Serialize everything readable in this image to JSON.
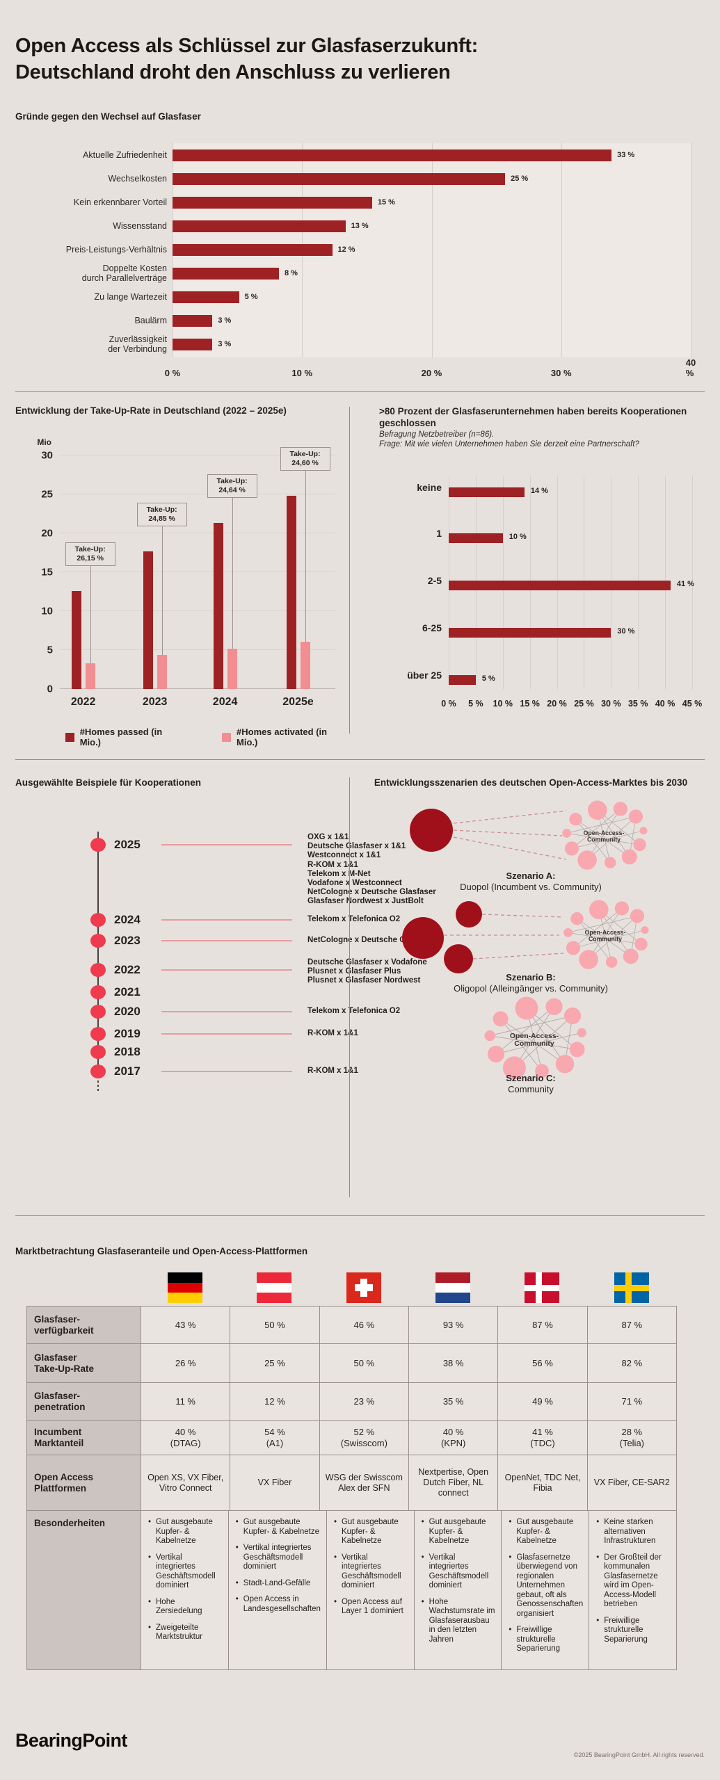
{
  "page": {
    "title": "Open Access als Schlüssel zur Glasfaserzukunft:\nDeutschland droht den Anschluss zu verlieren",
    "brand": "BearingPoint",
    "copyright": "©2025 BearingPoint GmbH. All rights reserved."
  },
  "colors": {
    "background": "#e7e1de",
    "dark_red": "#9e2124",
    "light_pink": "#f28d91",
    "bright_red": "#ef3b4d",
    "scenario_dark_red": "#a0101a",
    "scenario_pink": "#f8a8ae",
    "net_line": "#b5adaa",
    "dashed_line": "#c68f8e",
    "grid_line": "#d5cfcb"
  },
  "chart_data": [
    {
      "id": "reasons",
      "type": "bar",
      "orientation": "horizontal",
      "title": "Gründe gegen den Wechsel auf Glasfaser",
      "categories": [
        "Aktuelle Zufriedenheit",
        "Wechselkosten",
        "Kein erkennbarer Vorteil",
        "Wissensstand",
        "Preis-Leistungs-Verhältnis",
        "Doppelte Kosten\ndurch Parallelverträge",
        "Zu lange Wartezeit",
        "Baulärm",
        "Zuverlässigkeit\nder Verbindung"
      ],
      "values": [
        33,
        25,
        15,
        13,
        12,
        8,
        5,
        3,
        3
      ],
      "value_labels": [
        "33 %",
        "25 %",
        "15 %",
        "13 %",
        "12 %",
        "8 %",
        "5 %",
        "3 %",
        "3 %"
      ],
      "xlim": [
        0,
        40
      ],
      "x_ticks": [
        "0 %",
        "10 %",
        "20 %",
        "30 %",
        "40 %"
      ],
      "grid": true
    },
    {
      "id": "takeup",
      "type": "bar",
      "orientation": "vertical",
      "title": "Entwicklung der Take-Up-Rate in Deutschland (2022 – 2025e)",
      "unit_label": "Mio",
      "categories": [
        "2022",
        "2023",
        "2024",
        "2025e"
      ],
      "series": [
        {
          "name": "#Homes passed (in Mio.)",
          "values": [
            12.6,
            17.7,
            21.3,
            24.8
          ]
        },
        {
          "name": "#Homes activated (in Mio.)",
          "values": [
            3.3,
            4.4,
            5.2,
            6.1
          ]
        }
      ],
      "annotations": [
        {
          "line1": "Take-Up:",
          "line2": "26,15 %"
        },
        {
          "line1": "Take-Up:",
          "line2": "24,85 %"
        },
        {
          "line1": "Take-Up:",
          "line2": "24,64 %"
        },
        {
          "line1": "Take-Up:",
          "line2": "24,60 %"
        }
      ],
      "ylim": [
        0,
        30
      ],
      "y_ticks": [
        0,
        5,
        10,
        15,
        20,
        25,
        30
      ],
      "grid": true,
      "legend_position": "bottom"
    },
    {
      "id": "partnerships",
      "type": "bar",
      "orientation": "horizontal",
      "title": ">80 Prozent der Glasfaserunternehmen haben bereits Kooperationen geschlossen",
      "subtitle1": "Befragung Netzbetreiber (n=86).",
      "subtitle2": "Frage: Mit wie vielen Unternehmen haben Sie derzeit eine Partnerschaft?",
      "categories": [
        "keine",
        "1",
        "2-5",
        "6-25",
        "über 25"
      ],
      "values": [
        14,
        10,
        41,
        30,
        5
      ],
      "value_labels": [
        "14 %",
        "10 %",
        "41 %",
        "30 %",
        "5 %"
      ],
      "xlim": [
        0,
        45
      ],
      "x_ticks": [
        "0 %",
        "5 %",
        "10 %",
        "15 %",
        "20 %",
        "25 %",
        "30 %",
        "35 %",
        "40 %",
        "45 %"
      ],
      "grid": true
    }
  ],
  "timeline": {
    "title": "Ausgewählte Beispiele für Kooperationen",
    "entries": [
      {
        "year": "2025",
        "items": [
          "OXG x 1&1",
          "Deutsche Glasfaser x 1&1",
          "Westconnect x 1&1",
          "R-KOM x 1&1",
          "Telekom x M-Net",
          "Vodafone x Westconnect",
          "NetCologne x Deutsche Glasfaser",
          "Glasfaser Nordwest x JustBolt"
        ]
      },
      {
        "year": "2024",
        "items": [
          "Telekom x Telefonica O2"
        ]
      },
      {
        "year": "2023",
        "items": [
          "NetCologne x Deutsche Glasfaser"
        ]
      },
      {
        "year": "2022",
        "items": [
          "Deutsche Glasfaser x Vodafone",
          "Plusnet x Glasfaser Plus",
          "Plusnet x Glasfaser Nordwest"
        ]
      },
      {
        "year": "2021",
        "items": []
      },
      {
        "year": "2020",
        "items": [
          "Telekom x Telefonica O2"
        ]
      },
      {
        "year": "2019",
        "items": [
          "R-KOM x 1&1"
        ]
      },
      {
        "year": "2018",
        "items": []
      },
      {
        "year": "2017",
        "items": [
          "R-KOM x 1&1"
        ]
      }
    ]
  },
  "scenarios": {
    "title": "Entwicklungsszenarien des deutschen Open-Access-Marktes bis 2030",
    "community_label_line1": "Open-Access-",
    "community_label_line2": "Community",
    "items": [
      {
        "name": "Szenario A:",
        "desc": "Duopol (Incumbent vs. Community)",
        "incumbents": 1
      },
      {
        "name": "Szenario B:",
        "desc": "Oligopol (Alleingänger vs. Community)",
        "incumbents": 3
      },
      {
        "name": "Szenario C:",
        "desc": "Community",
        "incumbents": 0
      }
    ]
  },
  "market_table": {
    "title": "Marktbetrachtung Glasfaseranteile und Open-Access-Plattformen",
    "countries": [
      "germany",
      "austria",
      "switzerland",
      "netherlands",
      "denmark",
      "sweden"
    ],
    "rows": [
      {
        "label": "Glasfaser-\nverfügbarkeit",
        "cells": [
          "43 %",
          "50 %",
          "46 %",
          "93 %",
          "87 %",
          "87 %"
        ]
      },
      {
        "label": "Glasfaser\nTake-Up-Rate",
        "cells": [
          "26 %",
          "25 %",
          "50 %",
          "38 %",
          "56 %",
          "82 %"
        ]
      },
      {
        "label": "Glasfaser-\npenetration",
        "cells": [
          "11 %",
          "12 %",
          "23 %",
          "35 %",
          "49 %",
          "71 %"
        ]
      },
      {
        "label": "Incumbent\nMarktanteil",
        "cells": [
          "40 %\n(DTAG)",
          "54 %\n(A1)",
          "52 %\n(Swisscom)",
          "40 %\n(KPN)",
          "41 %\n(TDC)",
          "28 %\n(Telia)"
        ]
      },
      {
        "label": "Open Access\nPlattformen",
        "cells": [
          "Open XS, VX Fiber, Vitro Connect",
          "VX Fiber",
          "WSG der Swisscom Alex der SFN",
          "Nextpertise, Open Dutch Fiber, NL connect",
          "OpenNet, TDC Net, Fibia",
          "VX Fiber, CE-SAR2"
        ]
      },
      {
        "label": "Besonderheiten",
        "bullets": [
          [
            "Gut ausgebaute Kupfer- & Kabelnetze",
            "Vertikal integriertes Geschäftsmodell dominiert",
            "Hohe Zersiedelung",
            "Zweigeteilte Marktstruktur"
          ],
          [
            "Gut ausgebaute Kupfer- & Kabelnetze",
            "Vertikal integriertes Geschäftsmodell dominiert",
            "Stadt-Land-Gefälle",
            "Open Access in Landesgesellschaften"
          ],
          [
            "Gut ausgebaute Kupfer- & Kabelnetze",
            "Vertikal integriertes Geschäftsmodell dominiert",
            "Open Access auf Layer 1 dominiert"
          ],
          [
            "Gut ausgebaute Kupfer- & Kabelnetze",
            "Vertikal integriertes Geschäftsmodell dominiert",
            "Hohe Wachstumsrate im Glasfaserausbau in den letzten Jahren"
          ],
          [
            "Gut ausgebaute Kupfer- & Kabelnetze",
            "Glasfasernetze überwiegend von regionalen Unternehmen gebaut, oft als Genossenschaften organisiert",
            "Freiwillige strukturelle Separierung"
          ],
          [
            "Keine starken alternativen Infrastrukturen",
            "Der Großteil der kommunalen Glasfasernetze wird im Open-Access-Modell betrieben",
            "Freiwillige strukturelle Separierung"
          ]
        ]
      }
    ]
  }
}
